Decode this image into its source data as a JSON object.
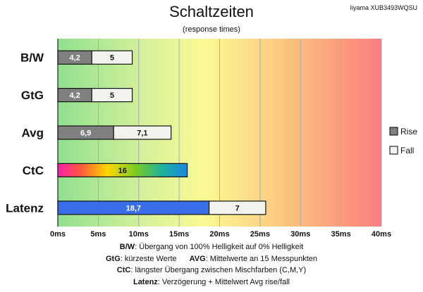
{
  "header": {
    "title": "Schaltzeiten",
    "subtitle": "(response times)",
    "model": "Iiyama XUB3493WQSU"
  },
  "chart_data": {
    "type": "bar",
    "orientation": "horizontal",
    "stacked": true,
    "categories": [
      "B/W",
      "GtG",
      "Avg",
      "CtC",
      "Latenz"
    ],
    "series": [
      {
        "name": "Rise",
        "values": [
          4.2,
          4.2,
          6.9,
          16,
          18.7
        ],
        "labels": [
          "4,2",
          "4,2",
          "6,9",
          "16",
          "18,7"
        ]
      },
      {
        "name": "Fall",
        "values": [
          5,
          5,
          7.1,
          null,
          7
        ],
        "labels": [
          "5",
          "5",
          "7,1",
          "",
          "7"
        ]
      }
    ],
    "xlim": [
      0,
      40
    ],
    "xticks": [
      "0ms",
      "5ms",
      "10ms",
      "15ms",
      "20ms",
      "25ms",
      "30ms",
      "35ms",
      "40ms"
    ],
    "grid": true,
    "legend": {
      "position": "right",
      "entries": [
        "Rise",
        "Fall"
      ]
    },
    "colors": {
      "rise": "#808080",
      "fall": "#f2f2ee",
      "latenz": "#3a6ee8",
      "grid": "#aaaaaa"
    }
  },
  "footer": {
    "lines": [
      {
        "key": "B/W",
        "text": ":  Übergang von 100% Helligkeit auf 0% Helligkeit"
      },
      {
        "key": "GtG",
        "text": ": kürzeste  Werte",
        "key2": "AVG",
        "text2": ": Mittelwerte  an 15 Messpunkten"
      },
      {
        "key": "CtC",
        "text": ": längster Übergang  zwischen Mischfarben  (C,M,Y)"
      },
      {
        "key": "Latenz",
        "text": ": Verzögerung  + Mittelwert  Avg rise/fall"
      }
    ]
  }
}
